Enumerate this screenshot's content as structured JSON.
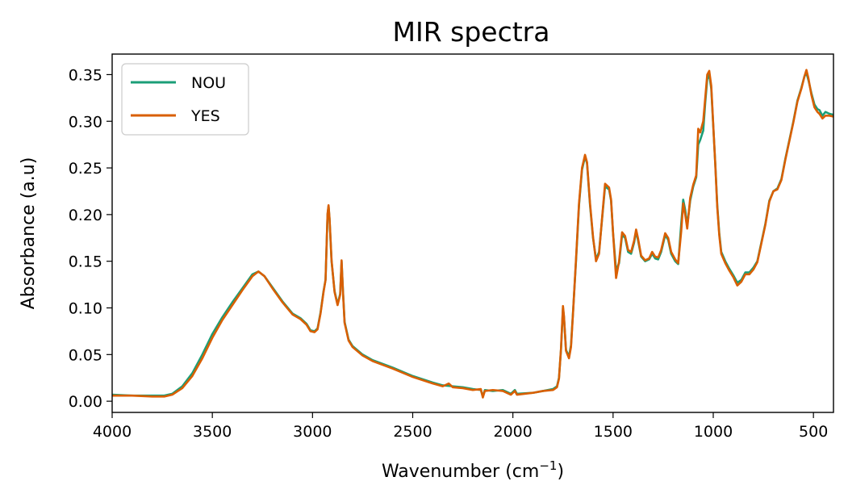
{
  "chart_data": {
    "type": "line",
    "title": "MIR spectra",
    "xlabel": "Wavenumber (cm",
    "xlabel_sup": "−1",
    "xlabel_suffix": ")",
    "ylabel": "Absorbance (a.u)",
    "xlim": [
      4000,
      400
    ],
    "ylim": [
      -0.012,
      0.372
    ],
    "x_reversed": true,
    "xticks": [
      4000,
      3500,
      3000,
      2500,
      2000,
      1500,
      1000,
      500
    ],
    "xtick_labels": [
      "4000",
      "3500",
      "3000",
      "2500",
      "2000",
      "1500",
      "1000",
      "500"
    ],
    "yticks": [
      0.0,
      0.05,
      0.1,
      0.15,
      0.2,
      0.25,
      0.3,
      0.35
    ],
    "ytick_labels": [
      "0.00",
      "0.05",
      "0.10",
      "0.15",
      "0.20",
      "0.25",
      "0.30",
      "0.35"
    ],
    "grid": false,
    "legend_position": "top-left",
    "series": [
      {
        "name": "NOU",
        "color": "#1b9e77",
        "points": [
          [
            4000,
            0.007
          ],
          [
            3900,
            0.006
          ],
          [
            3800,
            0.006
          ],
          [
            3740,
            0.006
          ],
          [
            3700,
            0.008
          ],
          [
            3650,
            0.016
          ],
          [
            3600,
            0.03
          ],
          [
            3550,
            0.05
          ],
          [
            3500,
            0.072
          ],
          [
            3450,
            0.09
          ],
          [
            3400,
            0.106
          ],
          [
            3350,
            0.121
          ],
          [
            3300,
            0.136
          ],
          [
            3270,
            0.139
          ],
          [
            3240,
            0.134
          ],
          [
            3200,
            0.122
          ],
          [
            3150,
            0.107
          ],
          [
            3100,
            0.094
          ],
          [
            3060,
            0.089
          ],
          [
            3030,
            0.083
          ],
          [
            3010,
            0.076
          ],
          [
            2990,
            0.075
          ],
          [
            2975,
            0.078
          ],
          [
            2960,
            0.095
          ],
          [
            2945,
            0.118
          ],
          [
            2935,
            0.13
          ],
          [
            2925,
            0.2
          ],
          [
            2920,
            0.209
          ],
          [
            2915,
            0.195
          ],
          [
            2905,
            0.15
          ],
          [
            2890,
            0.118
          ],
          [
            2875,
            0.104
          ],
          [
            2862,
            0.115
          ],
          [
            2855,
            0.15
          ],
          [
            2848,
            0.118
          ],
          [
            2840,
            0.085
          ],
          [
            2820,
            0.066
          ],
          [
            2800,
            0.059
          ],
          [
            2750,
            0.05
          ],
          [
            2700,
            0.044
          ],
          [
            2600,
            0.036
          ],
          [
            2500,
            0.027
          ],
          [
            2400,
            0.02
          ],
          [
            2350,
            0.017
          ],
          [
            2300,
            0.016
          ],
          [
            2250,
            0.015
          ],
          [
            2200,
            0.013
          ],
          [
            2160,
            0.012
          ],
          [
            2150,
            0.005
          ],
          [
            2140,
            0.012
          ],
          [
            2100,
            0.011
          ],
          [
            2050,
            0.012
          ],
          [
            2010,
            0.008
          ],
          [
            1990,
            0.012
          ],
          [
            1980,
            0.008
          ],
          [
            1900,
            0.009
          ],
          [
            1850,
            0.011
          ],
          [
            1800,
            0.013
          ],
          [
            1780,
            0.016
          ],
          [
            1770,
            0.025
          ],
          [
            1760,
            0.055
          ],
          [
            1750,
            0.1
          ],
          [
            1745,
            0.09
          ],
          [
            1735,
            0.055
          ],
          [
            1720,
            0.048
          ],
          [
            1710,
            0.06
          ],
          [
            1700,
            0.095
          ],
          [
            1685,
            0.15
          ],
          [
            1670,
            0.21
          ],
          [
            1655,
            0.248
          ],
          [
            1640,
            0.262
          ],
          [
            1630,
            0.255
          ],
          [
            1615,
            0.21
          ],
          [
            1600,
            0.175
          ],
          [
            1585,
            0.152
          ],
          [
            1570,
            0.16
          ],
          [
            1555,
            0.195
          ],
          [
            1540,
            0.23
          ],
          [
            1520,
            0.227
          ],
          [
            1510,
            0.215
          ],
          [
            1500,
            0.18
          ],
          [
            1485,
            0.14
          ],
          [
            1470,
            0.148
          ],
          [
            1455,
            0.178
          ],
          [
            1440,
            0.175
          ],
          [
            1425,
            0.16
          ],
          [
            1410,
            0.158
          ],
          [
            1395,
            0.17
          ],
          [
            1385,
            0.182
          ],
          [
            1375,
            0.172
          ],
          [
            1360,
            0.155
          ],
          [
            1340,
            0.15
          ],
          [
            1320,
            0.152
          ],
          [
            1305,
            0.158
          ],
          [
            1290,
            0.153
          ],
          [
            1275,
            0.152
          ],
          [
            1260,
            0.16
          ],
          [
            1240,
            0.178
          ],
          [
            1225,
            0.173
          ],
          [
            1210,
            0.158
          ],
          [
            1190,
            0.15
          ],
          [
            1175,
            0.147
          ],
          [
            1160,
            0.19
          ],
          [
            1150,
            0.216
          ],
          [
            1140,
            0.205
          ],
          [
            1130,
            0.188
          ],
          [
            1115,
            0.215
          ],
          [
            1100,
            0.23
          ],
          [
            1085,
            0.24
          ],
          [
            1075,
            0.275
          ],
          [
            1065,
            0.28
          ],
          [
            1050,
            0.29
          ],
          [
            1040,
            0.32
          ],
          [
            1030,
            0.345
          ],
          [
            1020,
            0.35
          ],
          [
            1010,
            0.335
          ],
          [
            1000,
            0.295
          ],
          [
            990,
            0.255
          ],
          [
            980,
            0.21
          ],
          [
            970,
            0.18
          ],
          [
            960,
            0.16
          ],
          [
            940,
            0.15
          ],
          [
            920,
            0.142
          ],
          [
            900,
            0.135
          ],
          [
            880,
            0.127
          ],
          [
            860,
            0.13
          ],
          [
            840,
            0.138
          ],
          [
            820,
            0.138
          ],
          [
            800,
            0.143
          ],
          [
            780,
            0.15
          ],
          [
            760,
            0.17
          ],
          [
            740,
            0.19
          ],
          [
            720,
            0.215
          ],
          [
            700,
            0.225
          ],
          [
            680,
            0.228
          ],
          [
            660,
            0.238
          ],
          [
            640,
            0.26
          ],
          [
            620,
            0.28
          ],
          [
            600,
            0.3
          ],
          [
            580,
            0.322
          ],
          [
            560,
            0.336
          ],
          [
            545,
            0.348
          ],
          [
            535,
            0.352
          ],
          [
            525,
            0.344
          ],
          [
            510,
            0.33
          ],
          [
            495,
            0.318
          ],
          [
            480,
            0.313
          ],
          [
            470,
            0.312
          ],
          [
            455,
            0.306
          ],
          [
            440,
            0.31
          ],
          [
            420,
            0.308
          ],
          [
            400,
            0.307
          ]
        ]
      },
      {
        "name": "YES",
        "color": "#d95f02",
        "points": [
          [
            4000,
            0.006
          ],
          [
            3900,
            0.006
          ],
          [
            3800,
            0.005
          ],
          [
            3740,
            0.005
          ],
          [
            3700,
            0.007
          ],
          [
            3650,
            0.014
          ],
          [
            3600,
            0.027
          ],
          [
            3550,
            0.046
          ],
          [
            3500,
            0.068
          ],
          [
            3450,
            0.087
          ],
          [
            3400,
            0.103
          ],
          [
            3350,
            0.119
          ],
          [
            3300,
            0.134
          ],
          [
            3270,
            0.139
          ],
          [
            3240,
            0.134
          ],
          [
            3200,
            0.121
          ],
          [
            3150,
            0.106
          ],
          [
            3100,
            0.093
          ],
          [
            3060,
            0.088
          ],
          [
            3030,
            0.082
          ],
          [
            3010,
            0.075
          ],
          [
            2990,
            0.074
          ],
          [
            2975,
            0.077
          ],
          [
            2960,
            0.094
          ],
          [
            2945,
            0.117
          ],
          [
            2935,
            0.13
          ],
          [
            2925,
            0.201
          ],
          [
            2920,
            0.21
          ],
          [
            2915,
            0.196
          ],
          [
            2905,
            0.151
          ],
          [
            2890,
            0.117
          ],
          [
            2875,
            0.103
          ],
          [
            2862,
            0.114
          ],
          [
            2855,
            0.151
          ],
          [
            2848,
            0.117
          ],
          [
            2840,
            0.084
          ],
          [
            2820,
            0.065
          ],
          [
            2800,
            0.058
          ],
          [
            2750,
            0.049
          ],
          [
            2700,
            0.043
          ],
          [
            2600,
            0.035
          ],
          [
            2500,
            0.026
          ],
          [
            2400,
            0.019
          ],
          [
            2350,
            0.016
          ],
          [
            2320,
            0.019
          ],
          [
            2300,
            0.015
          ],
          [
            2250,
            0.014
          ],
          [
            2200,
            0.012
          ],
          [
            2160,
            0.013
          ],
          [
            2150,
            0.004
          ],
          [
            2140,
            0.011
          ],
          [
            2100,
            0.012
          ],
          [
            2050,
            0.011
          ],
          [
            2010,
            0.007
          ],
          [
            1990,
            0.011
          ],
          [
            1980,
            0.007
          ],
          [
            1900,
            0.009
          ],
          [
            1850,
            0.011
          ],
          [
            1800,
            0.012
          ],
          [
            1780,
            0.015
          ],
          [
            1770,
            0.024
          ],
          [
            1760,
            0.056
          ],
          [
            1750,
            0.102
          ],
          [
            1745,
            0.091
          ],
          [
            1735,
            0.054
          ],
          [
            1720,
            0.046
          ],
          [
            1710,
            0.058
          ],
          [
            1700,
            0.094
          ],
          [
            1685,
            0.152
          ],
          [
            1670,
            0.212
          ],
          [
            1655,
            0.25
          ],
          [
            1640,
            0.264
          ],
          [
            1630,
            0.256
          ],
          [
            1615,
            0.212
          ],
          [
            1600,
            0.176
          ],
          [
            1585,
            0.15
          ],
          [
            1570,
            0.158
          ],
          [
            1555,
            0.196
          ],
          [
            1540,
            0.233
          ],
          [
            1520,
            0.229
          ],
          [
            1510,
            0.216
          ],
          [
            1500,
            0.18
          ],
          [
            1485,
            0.132
          ],
          [
            1470,
            0.15
          ],
          [
            1455,
            0.181
          ],
          [
            1440,
            0.177
          ],
          [
            1425,
            0.162
          ],
          [
            1410,
            0.16
          ],
          [
            1395,
            0.172
          ],
          [
            1385,
            0.184
          ],
          [
            1375,
            0.174
          ],
          [
            1360,
            0.156
          ],
          [
            1340,
            0.151
          ],
          [
            1320,
            0.153
          ],
          [
            1305,
            0.16
          ],
          [
            1290,
            0.155
          ],
          [
            1275,
            0.154
          ],
          [
            1260,
            0.162
          ],
          [
            1240,
            0.18
          ],
          [
            1225,
            0.175
          ],
          [
            1210,
            0.16
          ],
          [
            1190,
            0.152
          ],
          [
            1175,
            0.148
          ],
          [
            1160,
            0.182
          ],
          [
            1150,
            0.212
          ],
          [
            1140,
            0.2
          ],
          [
            1130,
            0.185
          ],
          [
            1115,
            0.218
          ],
          [
            1100,
            0.232
          ],
          [
            1085,
            0.242
          ],
          [
            1075,
            0.292
          ],
          [
            1065,
            0.288
          ],
          [
            1050,
            0.3
          ],
          [
            1040,
            0.325
          ],
          [
            1030,
            0.35
          ],
          [
            1020,
            0.354
          ],
          [
            1010,
            0.338
          ],
          [
            1000,
            0.296
          ],
          [
            990,
            0.254
          ],
          [
            980,
            0.208
          ],
          [
            970,
            0.178
          ],
          [
            960,
            0.158
          ],
          [
            940,
            0.148
          ],
          [
            920,
            0.14
          ],
          [
            900,
            0.133
          ],
          [
            880,
            0.124
          ],
          [
            860,
            0.128
          ],
          [
            840,
            0.136
          ],
          [
            820,
            0.136
          ],
          [
            800,
            0.141
          ],
          [
            780,
            0.149
          ],
          [
            760,
            0.169
          ],
          [
            740,
            0.189
          ],
          [
            720,
            0.214
          ],
          [
            700,
            0.225
          ],
          [
            680,
            0.227
          ],
          [
            660,
            0.237
          ],
          [
            640,
            0.259
          ],
          [
            620,
            0.279
          ],
          [
            600,
            0.299
          ],
          [
            580,
            0.321
          ],
          [
            560,
            0.335
          ],
          [
            545,
            0.348
          ],
          [
            535,
            0.355
          ],
          [
            525,
            0.346
          ],
          [
            510,
            0.328
          ],
          [
            495,
            0.315
          ],
          [
            480,
            0.31
          ],
          [
            470,
            0.308
          ],
          [
            455,
            0.303
          ],
          [
            440,
            0.306
          ],
          [
            420,
            0.306
          ],
          [
            400,
            0.305
          ]
        ]
      }
    ]
  }
}
